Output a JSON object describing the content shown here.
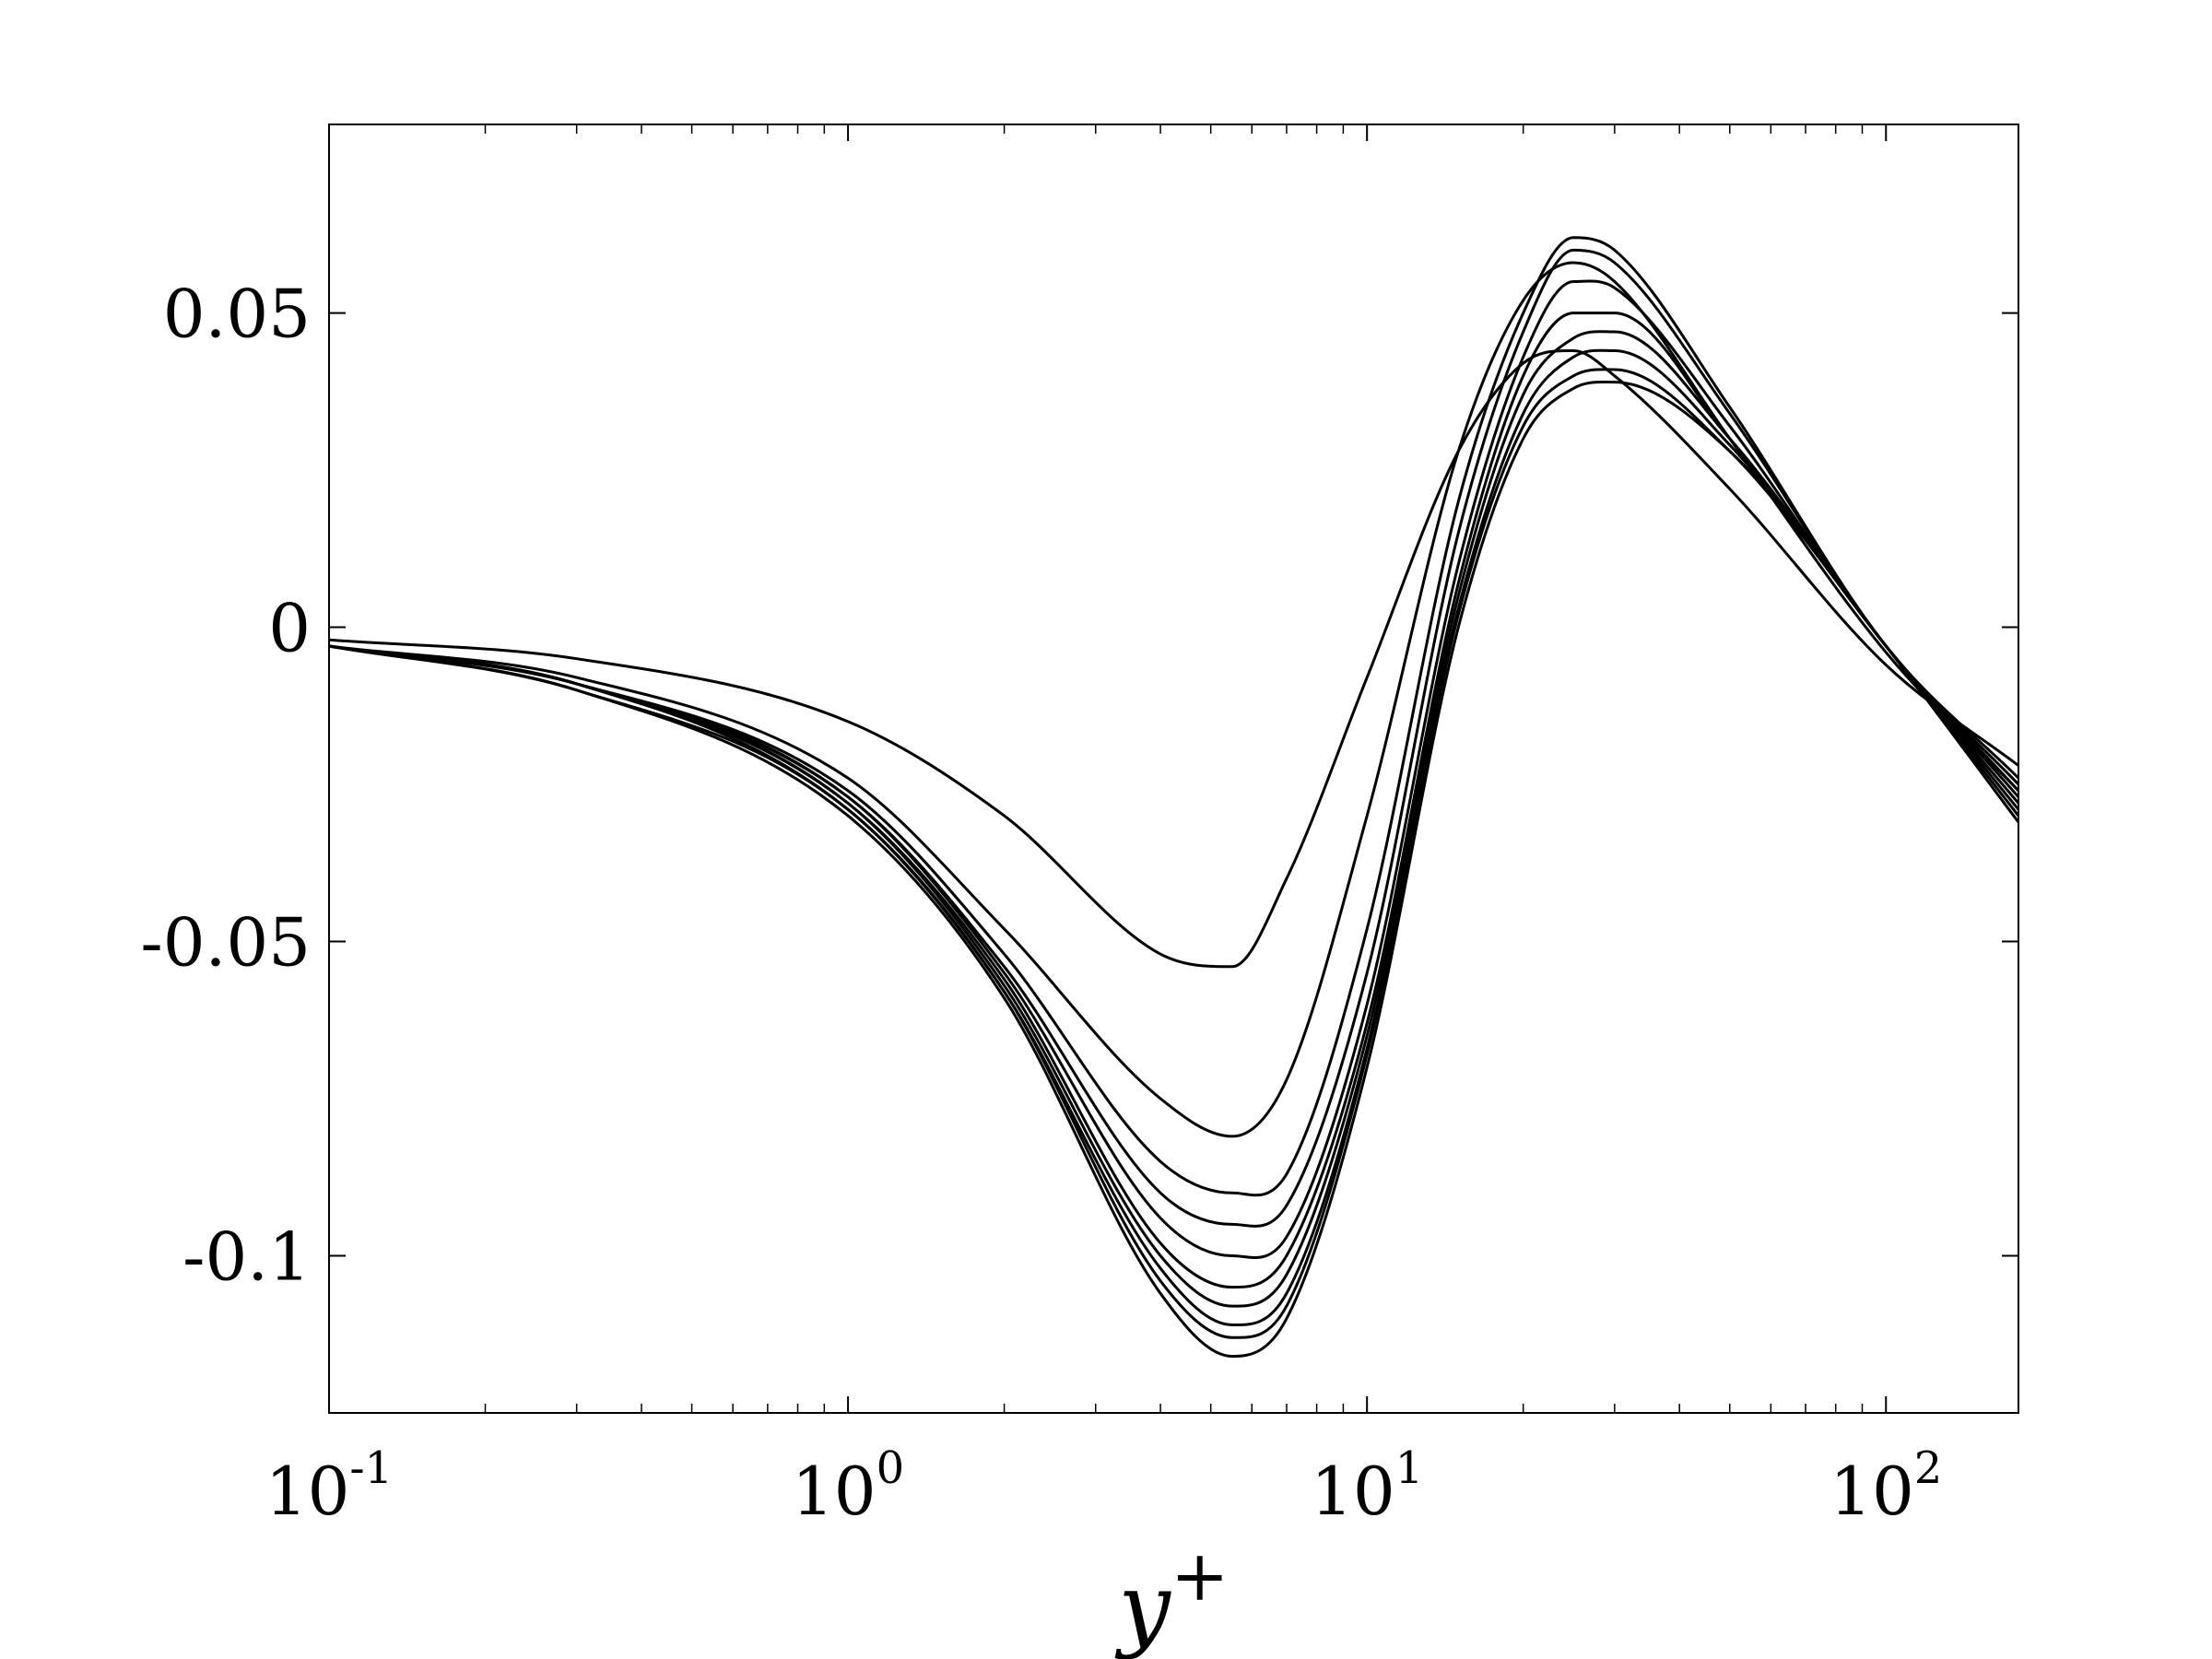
{
  "chart_data": {
    "type": "line",
    "title": "",
    "xlabel": "y",
    "xlabel_sup": "+",
    "ylabel": "",
    "xscale": "log",
    "xlim": [
      0.1,
      180
    ],
    "ylim": [
      -0.125,
      0.08
    ],
    "xticks": [
      {
        "value": 0.1,
        "base": "10",
        "exp": "-1"
      },
      {
        "value": 1,
        "base": "10",
        "exp": "0"
      },
      {
        "value": 10,
        "base": "10",
        "exp": "1"
      },
      {
        "value": 100,
        "base": "10",
        "exp": "2"
      }
    ],
    "yticks": [
      {
        "value": 0.05,
        "label": "0.05"
      },
      {
        "value": 0,
        "label": "0"
      },
      {
        "value": -0.05,
        "label": "-0.05"
      },
      {
        "value": -0.1,
        "label": "-0.1"
      }
    ],
    "grid": false,
    "legend": "none",
    "color": "#000000",
    "series": [
      {
        "x": [
          0.1,
          0.3,
          1,
          2,
          4,
          5.5,
          7,
          10,
          15,
          20,
          25,
          30,
          50,
          100,
          180
        ],
        "y": [
          -0.002,
          -0.005,
          -0.015,
          -0.03,
          -0.052,
          -0.054,
          -0.04,
          -0.008,
          0.028,
          0.042,
          0.044,
          0.04,
          0.022,
          -0.006,
          -0.022
        ]
      },
      {
        "x": [
          0.1,
          0.3,
          1,
          2,
          4,
          5.5,
          7,
          10,
          15,
          20,
          25,
          30,
          50,
          100,
          180
        ],
        "y": [
          -0.003,
          -0.008,
          -0.024,
          -0.048,
          -0.075,
          -0.081,
          -0.072,
          -0.03,
          0.028,
          0.052,
          0.058,
          0.055,
          0.03,
          -0.004,
          -0.026
        ]
      },
      {
        "x": [
          0.1,
          0.3,
          1,
          2,
          4,
          5.5,
          7,
          10,
          15,
          20,
          25,
          30,
          50,
          100,
          180
        ],
        "y": [
          -0.003,
          -0.009,
          -0.026,
          -0.052,
          -0.085,
          -0.09,
          -0.087,
          -0.048,
          0.02,
          0.05,
          0.062,
          0.06,
          0.035,
          -0.003,
          -0.024
        ]
      },
      {
        "x": [
          0.1,
          0.3,
          1,
          2,
          4,
          5.5,
          7,
          10,
          15,
          20,
          25,
          30,
          50,
          100,
          180
        ],
        "y": [
          -0.003,
          -0.009,
          -0.027,
          -0.054,
          -0.09,
          -0.095,
          -0.092,
          -0.055,
          0.015,
          0.047,
          0.06,
          0.058,
          0.034,
          -0.003,
          -0.025
        ]
      },
      {
        "x": [
          0.1,
          0.3,
          1,
          2,
          4,
          5.5,
          7,
          10,
          15,
          20,
          25,
          30,
          50,
          100,
          180
        ],
        "y": [
          -0.003,
          -0.009,
          -0.027,
          -0.055,
          -0.094,
          -0.1,
          -0.097,
          -0.06,
          0.01,
          0.043,
          0.055,
          0.054,
          0.032,
          -0.003,
          -0.026
        ]
      },
      {
        "x": [
          0.1,
          0.3,
          1,
          2,
          4,
          5.5,
          7,
          10,
          15,
          20,
          25,
          30,
          50,
          100,
          180
        ],
        "y": [
          -0.003,
          -0.009,
          -0.028,
          -0.056,
          -0.098,
          -0.105,
          -0.1,
          -0.063,
          0.007,
          0.04,
          0.05,
          0.05,
          0.03,
          -0.003,
          -0.027
        ]
      },
      {
        "x": [
          0.1,
          0.3,
          1,
          2,
          4,
          5.5,
          7,
          10,
          15,
          20,
          25,
          30,
          50,
          100,
          180
        ],
        "y": [
          -0.003,
          -0.009,
          -0.028,
          -0.057,
          -0.1,
          -0.108,
          -0.103,
          -0.065,
          0.005,
          0.037,
          0.046,
          0.047,
          0.03,
          -0.003,
          -0.028
        ]
      },
      {
        "x": [
          0.1,
          0.3,
          1,
          2,
          4,
          5.5,
          7,
          10,
          15,
          20,
          25,
          30,
          50,
          100,
          180
        ],
        "y": [
          -0.003,
          -0.009,
          -0.029,
          -0.058,
          -0.102,
          -0.111,
          -0.106,
          -0.067,
          0.003,
          0.034,
          0.043,
          0.044,
          0.029,
          -0.003,
          -0.029
        ]
      },
      {
        "x": [
          0.1,
          0.3,
          1,
          2,
          4,
          5.5,
          7,
          10,
          15,
          20,
          25,
          30,
          50,
          100,
          180
        ],
        "y": [
          -0.003,
          -0.01,
          -0.029,
          -0.058,
          -0.104,
          -0.113,
          -0.108,
          -0.068,
          0.002,
          0.032,
          0.04,
          0.041,
          0.028,
          -0.003,
          -0.03
        ]
      },
      {
        "x": [
          0.1,
          0.3,
          1,
          2,
          4,
          5.5,
          7,
          10,
          15,
          20,
          25,
          30,
          50,
          100,
          180
        ],
        "y": [
          -0.003,
          -0.01,
          -0.03,
          -0.059,
          -0.106,
          -0.116,
          -0.11,
          -0.07,
          0,
          0.03,
          0.038,
          0.039,
          0.028,
          -0.003,
          -0.031
        ]
      }
    ]
  }
}
